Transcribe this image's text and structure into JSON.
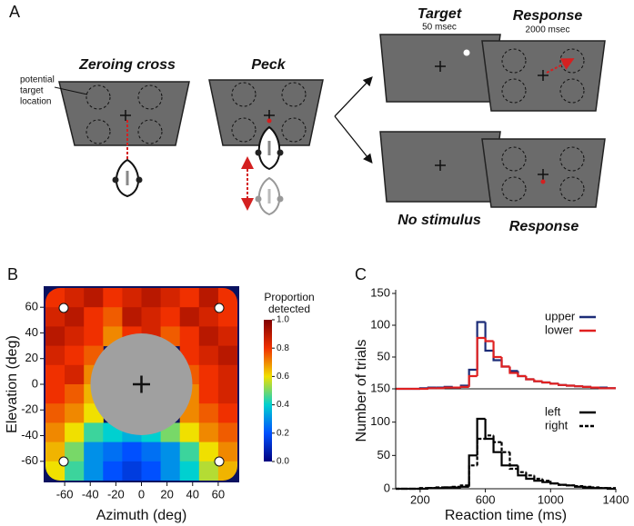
{
  "panels": {
    "a": "A",
    "b": "B",
    "c": "C"
  },
  "diagram": {
    "zeroing_title": "Zeroing cross",
    "peck_title": "Peck",
    "target_note": [
      "potential",
      "target",
      "location"
    ],
    "target_title": "Target",
    "target_time": "50 msec",
    "response_title": "Response",
    "response_time": "2000 msec",
    "no_stimulus": "No stimulus",
    "response_bottom": "Response"
  },
  "chart_data": [
    {
      "type": "heatmap",
      "x_label": "Azimuth (deg)",
      "y_label": "Elevation (deg)",
      "xlim": [
        -75,
        75
      ],
      "ylim": [
        -75,
        75
      ],
      "xticks": [
        -60,
        -40,
        -20,
        0,
        20,
        40,
        60
      ],
      "yticks": [
        -60,
        -40,
        -20,
        0,
        20,
        40,
        60
      ],
      "z": [
        [
          0.8,
          0.85,
          0.9,
          0.8,
          0.85,
          0.9,
          0.85,
          0.8,
          0.9,
          0.8
        ],
        [
          0.85,
          0.9,
          0.8,
          0.75,
          0.9,
          0.85,
          0.8,
          0.9,
          0.85,
          0.8
        ],
        [
          0.9,
          0.85,
          0.8,
          0.7,
          0.8,
          0.85,
          0.75,
          0.8,
          0.9,
          0.85
        ],
        [
          0.85,
          0.8,
          0.75,
          null,
          null,
          null,
          null,
          0.8,
          0.85,
          0.9
        ],
        [
          0.8,
          0.85,
          0.7,
          null,
          null,
          null,
          null,
          0.75,
          0.8,
          0.85
        ],
        [
          0.8,
          0.75,
          0.65,
          null,
          null,
          null,
          null,
          0.7,
          0.8,
          0.85
        ],
        [
          0.75,
          0.7,
          0.6,
          null,
          null,
          null,
          null,
          0.7,
          0.75,
          0.8
        ],
        [
          0.7,
          0.6,
          0.45,
          0.4,
          0.35,
          0.4,
          0.5,
          0.6,
          0.7,
          0.75
        ],
        [
          0.65,
          0.5,
          0.3,
          0.25,
          0.2,
          0.25,
          0.3,
          0.45,
          0.6,
          0.7
        ],
        [
          0.6,
          0.45,
          0.3,
          0.2,
          0.15,
          0.2,
          0.3,
          0.4,
          0.55,
          0.65
        ]
      ],
      "colorbar_title": [
        "Proportion",
        "detected"
      ],
      "colorbar_lim": [
        0,
        1
      ],
      "colorbar_ticks": [
        {
          "value": 0,
          "label": "0.0"
        },
        {
          "value": 0.2,
          "label": "0.2"
        },
        {
          "value": 0.4,
          "label": "0.4"
        },
        {
          "value": 0.6,
          "label": "0.6"
        },
        {
          "value": 0.8,
          "label": "0.8"
        },
        {
          "value": 1,
          "label": "1.0"
        }
      ],
      "colorscale": [
        "#00007f",
        "#0050ff",
        "#00d0d0",
        "#f0e000",
        "#f03000",
        "#800000"
      ]
    },
    {
      "type": "histogram",
      "y_label": "Number of trials",
      "bins": [
        50,
        100,
        150,
        200,
        250,
        300,
        350,
        400,
        450,
        500,
        550,
        600,
        650,
        700,
        750,
        800,
        850,
        900,
        950,
        1000,
        1050,
        1100,
        1150,
        1200,
        1250,
        1300,
        1350,
        1400
      ],
      "xlim": [
        50,
        1400
      ],
      "ylim": [
        0,
        150
      ],
      "yticks": [
        50,
        100,
        150
      ],
      "legend": "upper right",
      "series": [
        {
          "name": "upper",
          "color": "#1c2c78",
          "line_style": "solid",
          "values": [
            0,
            0,
            0,
            1,
            2,
            2,
            3,
            2,
            5,
            30,
            105,
            60,
            45,
            35,
            28,
            20,
            15,
            12,
            10,
            8,
            6,
            5,
            4,
            3,
            2,
            2,
            1
          ]
        },
        {
          "name": "lower",
          "color": "#e02020",
          "line_style": "solid",
          "values": [
            0,
            0,
            0,
            0,
            1,
            1,
            2,
            2,
            3,
            20,
            80,
            75,
            50,
            35,
            25,
            20,
            15,
            12,
            10,
            8,
            6,
            5,
            4,
            3,
            2,
            1,
            1
          ]
        }
      ]
    },
    {
      "type": "histogram",
      "x_label": "Reaction time (ms)",
      "bins": [
        50,
        100,
        150,
        200,
        250,
        300,
        350,
        400,
        450,
        500,
        550,
        600,
        650,
        700,
        750,
        800,
        850,
        900,
        950,
        1000,
        1050,
        1100,
        1150,
        1200,
        1250,
        1300,
        1350,
        1400
      ],
      "xlim": [
        50,
        1400
      ],
      "ylim": [
        0,
        150
      ],
      "xticks": [
        200,
        600,
        1000,
        1400
      ],
      "yticks": [
        0,
        50,
        100,
        150
      ],
      "legend": "upper right",
      "series": [
        {
          "name": "left",
          "color": "#000000",
          "line_style": "solid",
          "values": [
            0,
            0,
            0,
            0,
            1,
            1,
            2,
            2,
            3,
            50,
            105,
            75,
            55,
            35,
            35,
            20,
            15,
            12,
            10,
            8,
            6,
            5,
            3,
            2,
            1,
            1,
            0
          ]
        },
        {
          "name": "right",
          "color": "#000000",
          "line_style": "dashed",
          "values": [
            0,
            0,
            0,
            1,
            1,
            2,
            2,
            3,
            5,
            35,
            75,
            80,
            70,
            55,
            30,
            25,
            20,
            15,
            12,
            8,
            6,
            5,
            4,
            3,
            2,
            1,
            1
          ]
        }
      ]
    }
  ]
}
